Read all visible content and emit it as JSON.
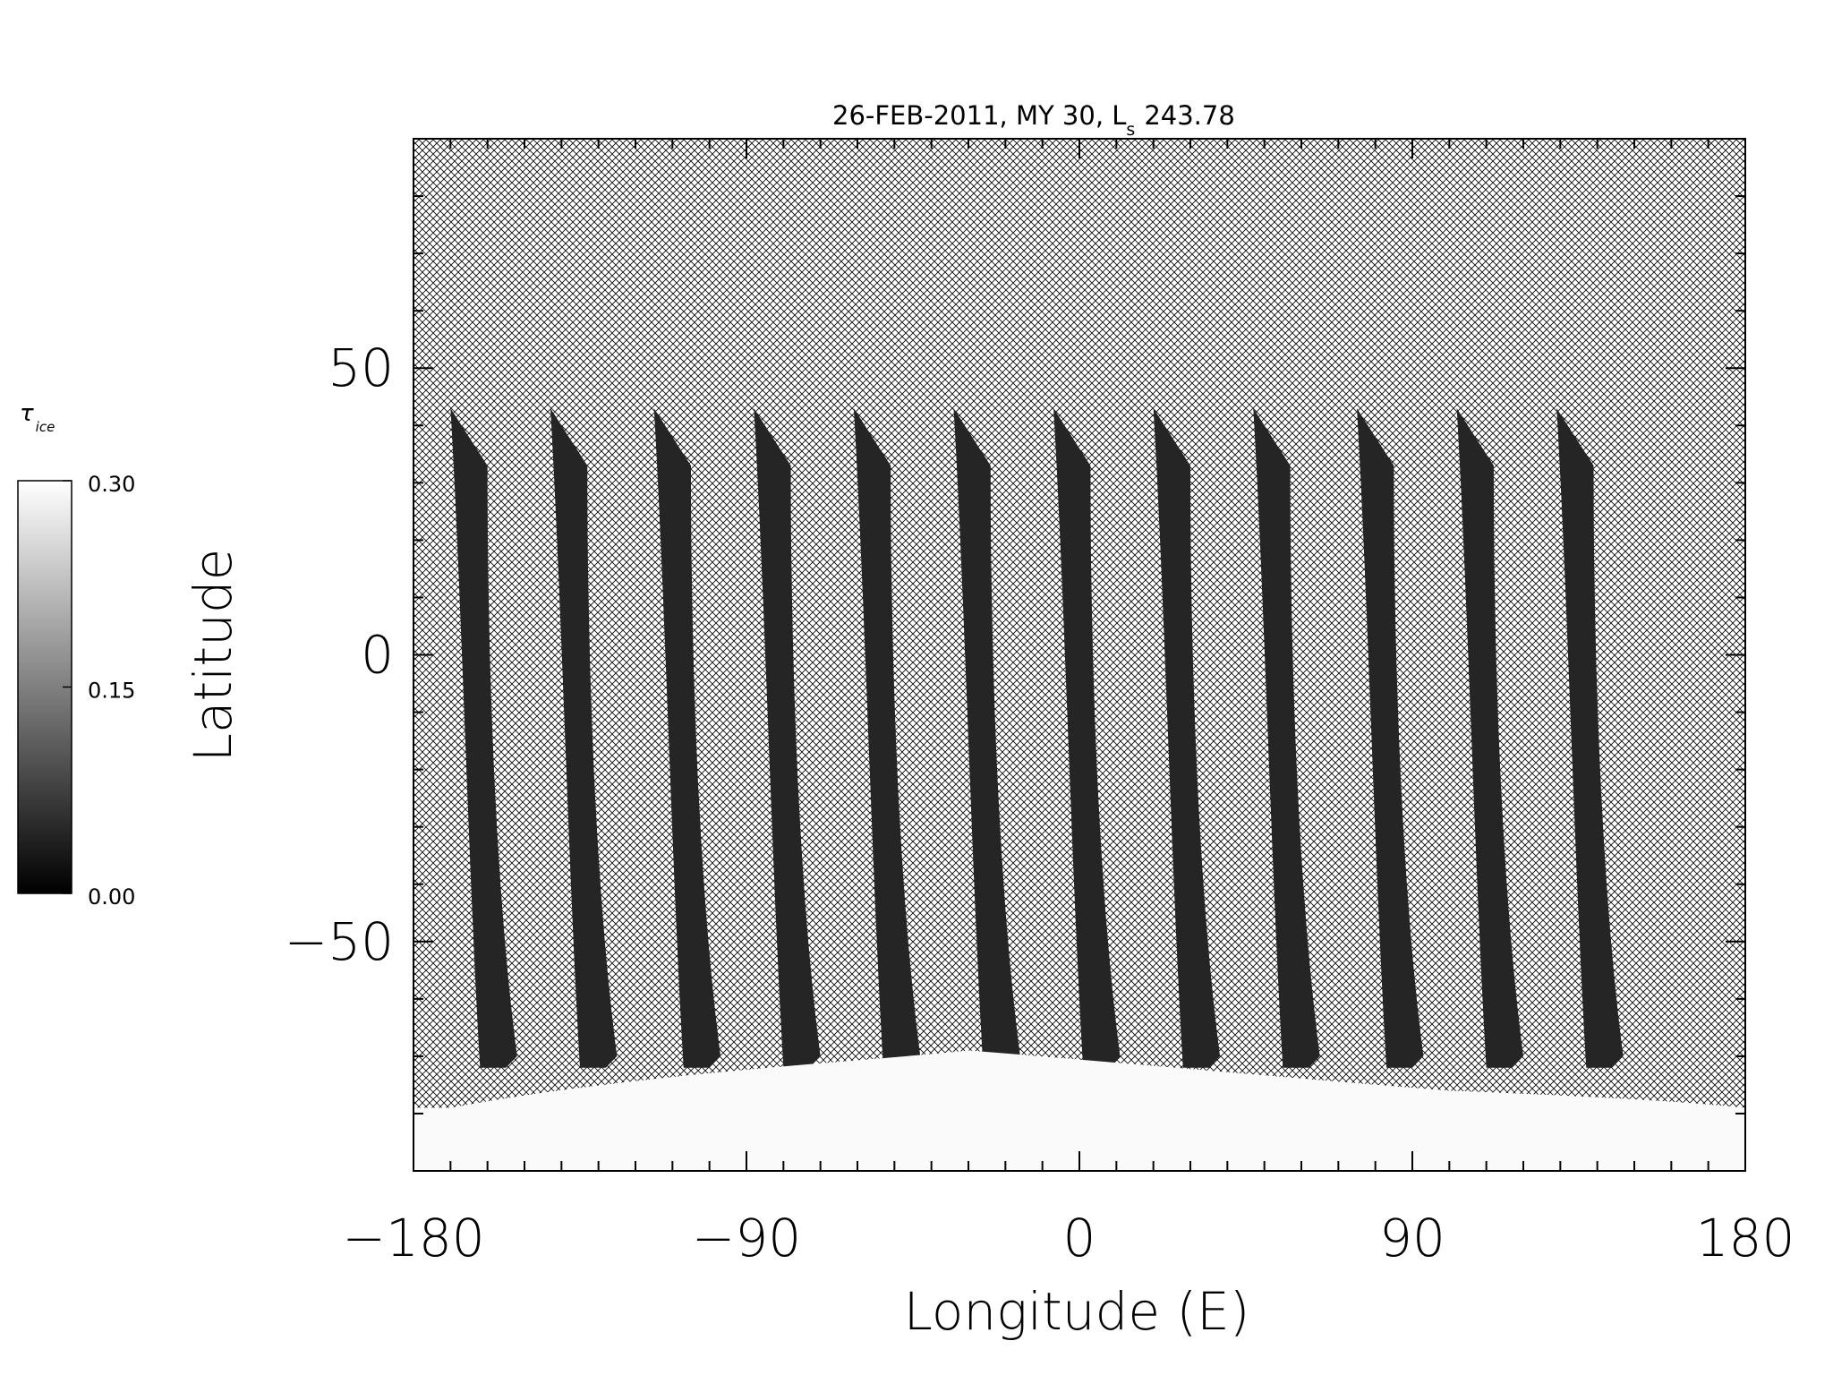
{
  "chart_data": {
    "type": "heatmap",
    "title": "26-FEB-2011, MY 30,  L",
    "title_sub": "s",
    "title_value": "243.78",
    "xlabel": "Longitude (E)",
    "ylabel": "Latitude",
    "xlim": [
      -180,
      180
    ],
    "ylim": [
      -90,
      90
    ],
    "x_ticks": [
      -180,
      -90,
      0,
      90,
      180
    ],
    "x_tick_labels": [
      "−180",
      "−90",
      "0",
      "90",
      "180"
    ],
    "y_ticks": [
      -50,
      0,
      50
    ],
    "y_tick_labels": [
      "−50",
      "0",
      "50"
    ],
    "colorbar": {
      "label": "τ",
      "label_sub": "ice",
      "range": [
        0.0,
        0.3
      ],
      "ticks": [
        0.0,
        0.15,
        0.3
      ],
      "tick_labels": [
        "0.00",
        "0.15",
        "0.30"
      ]
    },
    "swaths": {
      "start_longitudes": [
        -170,
        -143,
        -115,
        -88,
        -61,
        -34,
        -7,
        20,
        47,
        75,
        102,
        129
      ],
      "lat_top": 43,
      "lat_bottom": -72,
      "value": 0.02
    },
    "polar_cap": {
      "lat_edge": -72,
      "value": 0.3
    },
    "no_data_pattern": "crosshatch",
    "grid": false,
    "colors": {
      "swath": "#161616",
      "cap": "#fafafa",
      "hatch": "#000000",
      "background": "#ffffff"
    }
  }
}
